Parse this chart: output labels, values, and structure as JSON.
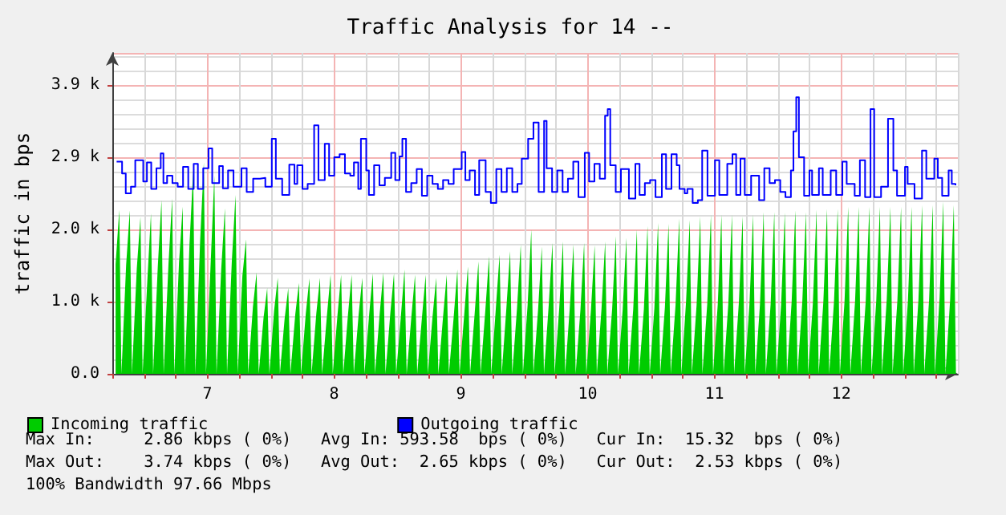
{
  "chart_data": {
    "type": "line",
    "title": "Traffic Analysis for 14 --",
    "ylabel": "traffic in bps",
    "xlim": [
      6.25,
      12.92
    ],
    "xticks": [
      {
        "value": 6.25,
        "label": null
      },
      {
        "value": 6.5,
        "label": null
      },
      {
        "value": 6.75,
        "label": null
      },
      {
        "value": 7,
        "label": "7"
      },
      {
        "value": 7.25,
        "label": null
      },
      {
        "value": 7.5,
        "label": null
      },
      {
        "value": 7.75,
        "label": null
      },
      {
        "value": 8,
        "label": "8"
      },
      {
        "value": 8.25,
        "label": null
      },
      {
        "value": 8.5,
        "label": null
      },
      {
        "value": 8.75,
        "label": null
      },
      {
        "value": 9,
        "label": "9"
      },
      {
        "value": 9.25,
        "label": null
      },
      {
        "value": 9.5,
        "label": null
      },
      {
        "value": 9.75,
        "label": null
      },
      {
        "value": 10,
        "label": "10"
      },
      {
        "value": 10.25,
        "label": null
      },
      {
        "value": 10.5,
        "label": null
      },
      {
        "value": 10.75,
        "label": null
      },
      {
        "value": 11,
        "label": "11"
      },
      {
        "value": 11.25,
        "label": null
      },
      {
        "value": 11.5,
        "label": null
      },
      {
        "value": 11.75,
        "label": null
      },
      {
        "value": 12,
        "label": "12"
      },
      {
        "value": 12.25,
        "label": null
      },
      {
        "value": 12.5,
        "label": null
      },
      {
        "value": 12.75,
        "label": null
      }
    ],
    "ylim": [
      0,
      4340
    ],
    "yticks": [
      {
        "value": 0,
        "label": "0.0"
      },
      {
        "value": 976.5625,
        "label": "1.0 k"
      },
      {
        "value": 1953.125,
        "label": "2.0 k"
      },
      {
        "value": 2929.6875,
        "label": "2.9 k"
      },
      {
        "value": 3906.25,
        "label": "3.9 k"
      }
    ],
    "grid": true,
    "legend": "bottom left",
    "marker": "none",
    "series": [
      {
        "name": "Incoming traffic",
        "type": "area",
        "color": "#00cc00",
        "x": [
          6.276,
          6.305,
          6.322,
          6.359,
          6.388,
          6.405,
          6.443,
          6.472,
          6.489,
          6.526,
          6.555,
          6.572,
          6.609,
          6.638,
          6.655,
          6.693,
          6.722,
          6.739,
          6.776,
          6.805,
          6.822,
          6.859,
          6.888,
          6.905,
          6.943,
          6.972,
          6.989,
          7.026,
          7.055,
          7.072,
          7.109,
          7.138,
          7.155,
          7.193,
          7.222,
          7.239,
          7.276,
          7.305,
          7.322,
          7.359,
          7.388,
          7.405,
          7.443,
          7.472,
          7.489,
          7.526,
          7.555,
          7.572,
          7.609,
          7.638,
          7.655,
          7.693,
          7.722,
          7.739,
          7.776,
          7.805,
          7.822,
          7.859,
          7.888,
          7.905,
          7.943,
          7.972,
          7.989,
          8.026,
          8.055,
          8.072,
          8.109,
          8.138,
          8.155,
          8.193,
          8.222,
          8.239,
          8.276,
          8.305,
          8.322,
          8.359,
          8.388,
          8.405,
          8.443,
          8.472,
          8.489,
          8.526,
          8.555,
          8.572,
          8.609,
          8.638,
          8.655,
          8.693,
          8.722,
          8.739,
          8.776,
          8.805,
          8.822,
          8.859,
          8.888,
          8.905,
          8.943,
          8.972,
          8.989,
          9.026,
          9.055,
          9.072,
          9.109,
          9.138,
          9.155,
          9.193,
          9.222,
          9.239,
          9.276,
          9.305,
          9.322,
          9.359,
          9.388,
          9.405,
          9.443,
          9.472,
          9.489,
          9.526,
          9.555,
          9.572,
          9.609,
          9.638,
          9.655,
          9.693,
          9.722,
          9.739,
          9.776,
          9.805,
          9.822,
          9.859,
          9.888,
          9.905,
          9.943,
          9.972,
          9.989,
          10.026,
          10.055,
          10.072,
          10.109,
          10.138,
          10.155,
          10.193,
          10.222,
          10.239,
          10.276,
          10.305,
          10.322,
          10.359,
          10.388,
          10.405,
          10.443,
          10.472,
          10.489,
          10.526,
          10.555,
          10.572,
          10.609,
          10.638,
          10.655,
          10.693,
          10.722,
          10.739,
          10.776,
          10.805,
          10.822,
          10.859,
          10.888,
          10.905,
          10.943,
          10.972,
          10.989,
          11.026,
          11.055,
          11.072,
          11.109,
          11.138,
          11.155,
          11.193,
          11.222,
          11.239,
          11.276,
          11.305,
          11.322,
          11.359,
          11.388,
          11.405,
          11.443,
          11.472,
          11.489,
          11.526,
          11.555,
          11.572,
          11.609,
          11.638,
          11.655,
          11.693,
          11.722,
          11.739,
          11.776,
          11.805,
          11.822,
          11.859,
          11.888,
          11.905,
          11.943,
          11.972,
          11.989,
          12.026,
          12.055,
          12.072,
          12.109,
          12.138,
          12.155,
          12.193,
          12.222,
          12.239,
          12.276,
          12.305,
          12.322,
          12.359,
          12.388,
          12.405,
          12.443,
          12.472,
          12.489,
          12.526,
          12.555,
          12.572,
          12.609,
          12.638,
          12.655,
          12.693,
          12.722,
          12.739,
          12.776,
          12.805,
          12.822,
          12.859,
          12.888,
          12.905
        ],
        "values": [
          1480,
          2220,
          0,
          1470,
          2210,
          0,
          1420,
          2120,
          0,
          1250,
          2170,
          0,
          1460,
          2350,
          0,
          1480,
          2370,
          0,
          1500,
          2260,
          0,
          1760,
          2750,
          0,
          1810,
          2860,
          0,
          1500,
          2680,
          0,
          1410,
          2240,
          0,
          1530,
          2420,
          0,
          1320,
          1820,
          0,
          900,
          1370,
          0,
          760,
          1160,
          0,
          850,
          1300,
          0,
          740,
          1160,
          0,
          800,
          1230,
          0,
          810,
          1290,
          0,
          810,
          1300,
          0,
          790,
          1340,
          0,
          790,
          1340,
          0,
          800,
          1340,
          0,
          800,
          1300,
          0,
          800,
          1360,
          0,
          810,
          1370,
          0,
          820,
          1360,
          0,
          770,
          1410,
          0,
          770,
          1340,
          0,
          770,
          1340,
          0,
          770,
          1300,
          0,
          770,
          1340,
          0,
          770,
          1410,
          0,
          800,
          1450,
          0,
          830,
          1520,
          0,
          870,
          1590,
          0,
          900,
          1610,
          0,
          900,
          1660,
          0,
          900,
          1750,
          0,
          930,
          1950,
          0,
          880,
          1720,
          0,
          940,
          1770,
          0,
          900,
          1790,
          0,
          900,
          1750,
          0,
          870,
          1770,
          0,
          870,
          1740,
          0,
          880,
          1790,
          0,
          880,
          1860,
          0,
          870,
          1840,
          0,
          870,
          1950,
          0,
          870,
          2000,
          0,
          890,
          2040,
          0,
          900,
          2030,
          0,
          930,
          2100,
          0,
          980,
          2080,
          0,
          930,
          2130,
          0,
          940,
          2150,
          0,
          940,
          2150,
          0,
          940,
          2150,
          0,
          980,
          2130,
          0,
          940,
          2150,
          0,
          940,
          2190,
          0,
          940,
          2190,
          0,
          940,
          2180,
          0,
          980,
          2210,
          0,
          980,
          2190,
          0,
          950,
          2220,
          0,
          980,
          2230,
          0,
          980,
          2230,
          0,
          980,
          2260,
          0,
          980,
          2260,
          0,
          980,
          2260,
          0,
          980,
          2260,
          0,
          1010,
          2260,
          0,
          990,
          2260,
          0,
          990,
          2260,
          0,
          1000,
          2280,
          0,
          1000,
          2280,
          0,
          1030,
          2330,
          0,
          1000,
          2280,
          0
        ]
      },
      {
        "name": "Outgoing traffic",
        "type": "step",
        "color": "#0000ff",
        "x": [
          6.284,
          6.327,
          6.356,
          6.397,
          6.431,
          6.472,
          6.494,
          6.523,
          6.557,
          6.598,
          6.632,
          6.653,
          6.682,
          6.724,
          6.766,
          6.808,
          6.849,
          6.892,
          6.925,
          6.967,
          7.009,
          7.038,
          7.093,
          7.122,
          7.163,
          7.206,
          7.269,
          7.31,
          7.361,
          7.415,
          7.457,
          7.508,
          7.54,
          7.59,
          7.646,
          7.687,
          7.709,
          7.75,
          7.791,
          7.842,
          7.876,
          7.926,
          7.96,
          8.001,
          8.043,
          8.085,
          8.127,
          8.156,
          8.19,
          8.211,
          8.253,
          8.274,
          8.315,
          8.357,
          8.4,
          8.45,
          8.482,
          8.516,
          8.538,
          8.567,
          8.608,
          8.651,
          8.692,
          8.734,
          8.776,
          8.818,
          8.859,
          8.902,
          8.943,
          9.006,
          9.035,
          9.069,
          9.111,
          9.144,
          9.195,
          9.236,
          9.279,
          9.32,
          9.362,
          9.405,
          9.446,
          9.48,
          9.53,
          9.572,
          9.613,
          9.656,
          9.676,
          9.719,
          9.76,
          9.802,
          9.844,
          9.886,
          9.927,
          9.977,
          10.011,
          10.053,
          10.095,
          10.137,
          10.158,
          10.178,
          10.221,
          10.262,
          10.325,
          10.376,
          10.409,
          10.451,
          10.492,
          10.535,
          10.585,
          10.618,
          10.661,
          10.702,
          10.724,
          10.765,
          10.786,
          10.828,
          10.869,
          10.903,
          10.945,
          11.004,
          11.038,
          11.101,
          11.142,
          11.171,
          11.205,
          11.239,
          11.289,
          11.352,
          11.393,
          11.435,
          11.477,
          11.519,
          11.56,
          11.603,
          11.623,
          11.645,
          11.666,
          11.707,
          11.749,
          11.77,
          11.824,
          11.854,
          11.917,
          11.96,
          12.009,
          12.043,
          12.106,
          12.147,
          12.188,
          12.231,
          12.26,
          12.314,
          12.369,
          12.411,
          12.44,
          12.503,
          12.524,
          12.578,
          12.637,
          12.671,
          12.734,
          12.762,
          12.796,
          12.847,
          12.872,
          12.901
        ],
        "values": [
          2870,
          2710,
          2440,
          2530,
          2890,
          2890,
          2600,
          2860,
          2500,
          2780,
          2980,
          2580,
          2680,
          2580,
          2530,
          2800,
          2500,
          2840,
          2500,
          2780,
          3050,
          2580,
          2810,
          2510,
          2750,
          2530,
          2780,
          2460,
          2640,
          2650,
          2530,
          3180,
          2640,
          2420,
          2830,
          2570,
          2820,
          2500,
          2570,
          3360,
          2620,
          3110,
          2680,
          2930,
          2970,
          2710,
          2680,
          2860,
          2500,
          3180,
          2750,
          2420,
          2820,
          2550,
          2650,
          2990,
          2620,
          2940,
          3180,
          2460,
          2580,
          2770,
          2410,
          2680,
          2570,
          2500,
          2620,
          2570,
          2770,
          3000,
          2620,
          2750,
          2420,
          2890,
          2460,
          2310,
          2770,
          2460,
          2780,
          2460,
          2570,
          2910,
          3180,
          3400,
          2460,
          3420,
          2780,
          2460,
          2750,
          2460,
          2640,
          2870,
          2390,
          2990,
          2600,
          2840,
          2640,
          3490,
          3580,
          2820,
          2460,
          2770,
          2370,
          2840,
          2420,
          2580,
          2620,
          2390,
          2970,
          2500,
          2970,
          2820,
          2500,
          2440,
          2500,
          2310,
          2350,
          3020,
          2410,
          2890,
          2420,
          2840,
          2970,
          2420,
          2910,
          2420,
          2680,
          2350,
          2780,
          2580,
          2620,
          2460,
          2390,
          2750,
          3280,
          3740,
          2930,
          2410,
          2750,
          2420,
          2780,
          2420,
          2750,
          2420,
          2870,
          2570,
          2410,
          2890,
          2390,
          3580,
          2390,
          2530,
          3450,
          2750,
          2410,
          2800,
          2570,
          2370,
          3020,
          2640,
          2910,
          2650,
          2410,
          2750,
          2570,
          2550
        ]
      }
    ],
    "annotations": [
      "Max In:     2.86 kbps ( 0%)   Avg In: 593.58  bps ( 0%)   Cur In:  15.32  bps ( 0%)",
      "Max Out:    3.74 kbps ( 0%)   Avg Out:  2.65 kbps ( 0%)   Cur Out:  2.53 kbps ( 0%)",
      "100% Bandwidth 97.66 Mbps"
    ]
  }
}
